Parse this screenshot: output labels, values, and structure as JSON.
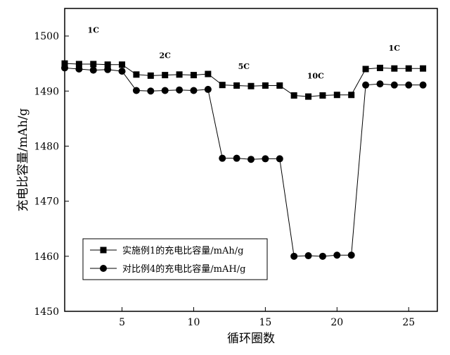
{
  "chart_data": {
    "type": "line",
    "xlabel": "循环圈数",
    "ylabel": "充电比容量/mAh/g",
    "xlim": [
      1,
      27
    ],
    "ylim": [
      1450,
      1505
    ],
    "xticks": [
      5,
      10,
      15,
      20,
      25
    ],
    "yticks": [
      1450,
      1460,
      1470,
      1480,
      1490,
      1500
    ],
    "grid": false,
    "legend_position": "bottom-left",
    "rate_labels": [
      {
        "text": "1C",
        "x": 3.0,
        "y": 1500.6
      },
      {
        "text": "2C",
        "x": 8.0,
        "y": 1496.0
      },
      {
        "text": "5C",
        "x": 13.5,
        "y": 1494.0
      },
      {
        "text": "10C",
        "x": 18.5,
        "y": 1492.3
      },
      {
        "text": "1C",
        "x": 24.0,
        "y": 1497.3
      }
    ],
    "series": [
      {
        "name": "实施例1的充电比容量/mAh/g",
        "marker": "square",
        "x": [
          1,
          2,
          3,
          4,
          5,
          6,
          7,
          8,
          9,
          10,
          11,
          12,
          13,
          14,
          15,
          16,
          17,
          18,
          19,
          20,
          21,
          22,
          23,
          24,
          25,
          26
        ],
        "values": [
          1495.0,
          1494.9,
          1494.9,
          1494.8,
          1494.8,
          1493.0,
          1492.8,
          1492.9,
          1493.0,
          1492.9,
          1493.1,
          1491.1,
          1491.0,
          1490.9,
          1491.0,
          1491.0,
          1489.2,
          1489.0,
          1489.2,
          1489.3,
          1489.3,
          1494.0,
          1494.2,
          1494.1,
          1494.1,
          1494.1
        ]
      },
      {
        "name": "对比例4的充电比容量/mAH/g",
        "marker": "circle",
        "x": [
          1,
          2,
          3,
          4,
          5,
          6,
          7,
          8,
          9,
          10,
          11,
          12,
          13,
          14,
          15,
          16,
          17,
          18,
          19,
          20,
          21,
          22,
          23,
          24,
          25,
          26
        ],
        "values": [
          1494.2,
          1494.0,
          1493.8,
          1493.9,
          1493.6,
          1490.1,
          1490.0,
          1490.1,
          1490.2,
          1490.1,
          1490.3,
          1477.8,
          1477.8,
          1477.6,
          1477.7,
          1477.7,
          1460.0,
          1460.1,
          1460.0,
          1460.2,
          1460.2,
          1491.1,
          1491.3,
          1491.1,
          1491.1,
          1491.1
        ]
      }
    ]
  }
}
